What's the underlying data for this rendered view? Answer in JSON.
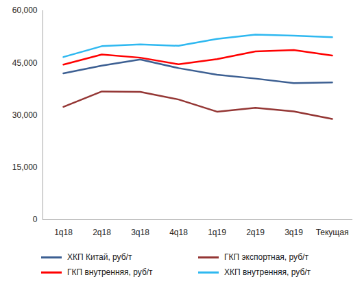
{
  "chart_data": {
    "type": "line",
    "categories": [
      "1q18",
      "2q18",
      "3q18",
      "4q18",
      "1q19",
      "2q19",
      "3q19",
      "Текущая"
    ],
    "series": [
      {
        "name": "ХКП Китай, руб/т",
        "color": "#3c5f92",
        "values": [
          42000,
          44200,
          46000,
          43500,
          41600,
          40500,
          39200,
          39400
        ]
      },
      {
        "name": "ГКП экспортная, руб/т",
        "color": "#943634",
        "values": [
          32400,
          36800,
          36700,
          34500,
          31000,
          32100,
          31100,
          28900
        ]
      },
      {
        "name": "ГКП внутренняя, руб/т",
        "color": "#ff0000",
        "values": [
          44500,
          47400,
          46500,
          44600,
          46100,
          48300,
          48700,
          47100
        ]
      },
      {
        "name": "ХКП внутренняя, руб/т",
        "color": "#2eb8f0",
        "values": [
          46700,
          49800,
          50300,
          49900,
          51900,
          53100,
          52800,
          52400
        ]
      }
    ],
    "ylim": [
      0,
      60000
    ],
    "yticks": [
      0,
      15000,
      30000,
      45000,
      60000
    ],
    "grid": false,
    "legend": "bottom"
  }
}
